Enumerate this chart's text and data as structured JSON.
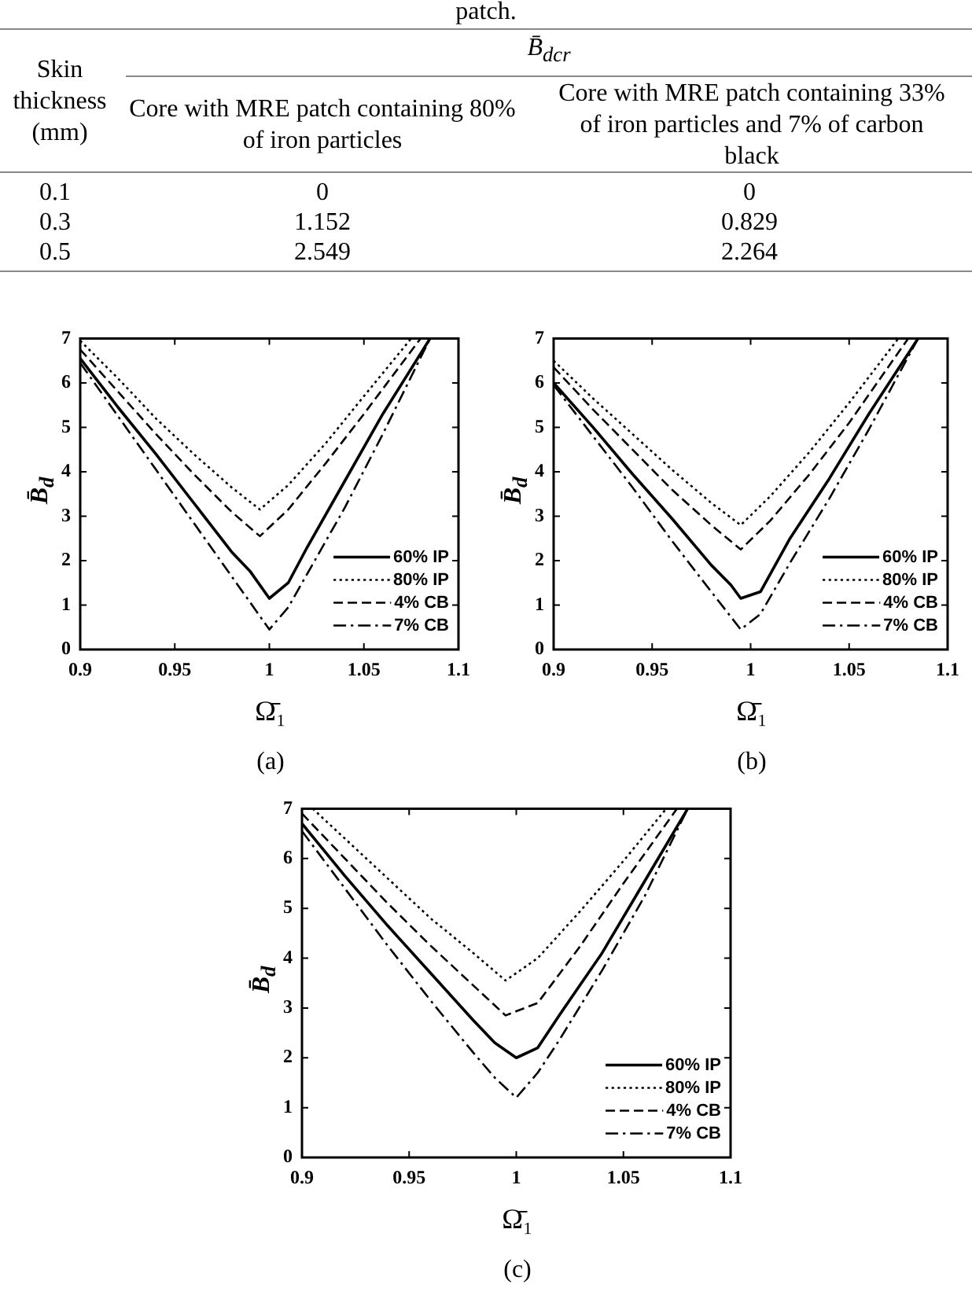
{
  "chart_data": [
    {
      "type": "other",
      "title": "patch.",
      "annotations": [
        "Skin thickness (mm)",
        "B̄$_{dcr}$",
        "Core with MRE patch containing 80% of iron particles",
        "Core with MRE patch containing 33% of iron particles and 7% of carbon black",
        "0.1",
        "0",
        "0",
        "0.3",
        "1.152",
        "0.829",
        "0.5",
        "2.549",
        "2.264"
      ]
    },
    {
      "type": "line",
      "title": "(a)",
      "xlabel": "Ω̄₁",
      "ylabel": "B̄$_{d}$",
      "xlim": [
        0.9,
        1.1
      ],
      "ylim": [
        0,
        7
      ],
      "xticks": [
        0.9,
        0.95,
        1,
        1.05,
        1.1
      ],
      "yticks": [
        0,
        1,
        2,
        3,
        4,
        5,
        6,
        7
      ],
      "legend": "bottom right",
      "series": [
        {
          "name": "60% IP",
          "color": "#000000",
          "line_style": "solid",
          "x": [
            0.9,
            0.92,
            0.94,
            0.96,
            0.98,
            0.99,
            1.0,
            1.01,
            1.02,
            1.04,
            1.06,
            1.085
          ],
          "values": [
            6.55,
            5.45,
            4.4,
            3.3,
            2.2,
            1.75,
            1.15,
            1.5,
            2.3,
            3.8,
            5.3,
            7
          ]
        },
        {
          "name": "80% IP",
          "color": "#000000",
          "line_style": "dotted",
          "x": [
            0.9,
            0.92,
            0.94,
            0.96,
            0.98,
            0.995,
            1.01,
            1.03,
            1.05,
            1.075
          ],
          "values": [
            6.95,
            6.1,
            5.2,
            4.4,
            3.65,
            3.15,
            3.7,
            4.65,
            5.7,
            7
          ]
        },
        {
          "name": "4% CB",
          "color": "#000000",
          "line_style": "dashed",
          "x": [
            0.9,
            0.92,
            0.94,
            0.96,
            0.98,
            0.995,
            1.01,
            1.03,
            1.05,
            1.08
          ],
          "values": [
            6.75,
            5.8,
            4.85,
            3.95,
            3.1,
            2.55,
            3.15,
            4.2,
            5.3,
            7
          ]
        },
        {
          "name": "7% CB",
          "color": "#000000",
          "line_style": "dashdot",
          "x": [
            0.9,
            0.92,
            0.94,
            0.96,
            0.98,
            0.99,
            1.0,
            1.01,
            1.02,
            1.04,
            1.06,
            1.085
          ],
          "values": [
            6.45,
            5.25,
            4.05,
            2.85,
            1.65,
            1.05,
            0.45,
            0.95,
            1.7,
            3.2,
            4.85,
            7
          ]
        }
      ]
    },
    {
      "type": "line",
      "title": "(b)",
      "xlabel": "Ω̄₁",
      "ylabel": "B̄$_{d}$",
      "xlim": [
        0.9,
        1.1
      ],
      "ylim": [
        0,
        7
      ],
      "xticks": [
        0.9,
        0.95,
        1,
        1.05,
        1.1
      ],
      "yticks": [
        0,
        1,
        2,
        3,
        4,
        5,
        6,
        7
      ],
      "legend": "bottom right",
      "series": [
        {
          "name": "60% IP",
          "color": "#000000",
          "line_style": "solid",
          "x": [
            0.9,
            0.92,
            0.94,
            0.96,
            0.98,
            0.99,
            0.995,
            1.005,
            1.02,
            1.04,
            1.06,
            1.085
          ],
          "values": [
            6,
            5,
            3.95,
            2.95,
            1.9,
            1.45,
            1.15,
            1.3,
            2.5,
            3.85,
            5.3,
            7
          ]
        },
        {
          "name": "80% IP",
          "color": "#000000",
          "line_style": "dotted",
          "x": [
            0.9,
            0.92,
            0.94,
            0.96,
            0.98,
            0.995,
            1.01,
            1.03,
            1.05,
            1.075
          ],
          "values": [
            6.5,
            5.65,
            4.85,
            4.05,
            3.3,
            2.8,
            3.45,
            4.45,
            5.55,
            7
          ]
        },
        {
          "name": "4% CB",
          "color": "#000000",
          "line_style": "dashed",
          "x": [
            0.9,
            0.92,
            0.94,
            0.96,
            0.98,
            0.995,
            1.01,
            1.03,
            1.05,
            1.08
          ],
          "values": [
            6.35,
            5.4,
            4.5,
            3.6,
            2.8,
            2.25,
            2.9,
            3.95,
            5.1,
            7
          ]
        },
        {
          "name": "7% CB",
          "color": "#000000",
          "line_style": "dashdot",
          "x": [
            0.9,
            0.92,
            0.94,
            0.96,
            0.98,
            0.995,
            1.005,
            1.02,
            1.04,
            1.06,
            1.085
          ],
          "values": [
            5.95,
            4.8,
            3.65,
            2.45,
            1.3,
            0.45,
            0.8,
            1.95,
            3.4,
            4.95,
            7
          ]
        }
      ]
    },
    {
      "type": "line",
      "title": "(c)",
      "xlabel": "Ω̄₁",
      "ylabel": "B̄$_{d}$",
      "xlim": [
        0.9,
        1.1
      ],
      "ylim": [
        0,
        7
      ],
      "xticks": [
        0.9,
        0.95,
        1,
        1.05,
        1.1
      ],
      "yticks": [
        0,
        1,
        2,
        3,
        4,
        5,
        6,
        7
      ],
      "legend": "bottom right",
      "series": [
        {
          "name": "60% IP",
          "color": "#000000",
          "line_style": "solid",
          "x": [
            0.9,
            0.92,
            0.94,
            0.96,
            0.98,
            0.99,
            1.0,
            1.01,
            1.02,
            1.04,
            1.06,
            1.08
          ],
          "values": [
            6.7,
            5.65,
            4.65,
            3.7,
            2.75,
            2.3,
            2.0,
            2.2,
            2.85,
            4.1,
            5.55,
            7
          ]
        },
        {
          "name": "80% IP",
          "color": "#000000",
          "line_style": "dotted",
          "x": [
            0.905,
            0.92,
            0.94,
            0.96,
            0.98,
            0.995,
            1.01,
            1.03,
            1.05,
            1.07
          ],
          "values": [
            7,
            6.4,
            5.6,
            4.8,
            4.1,
            3.55,
            4.0,
            4.95,
            5.95,
            7
          ]
        },
        {
          "name": "4% CB",
          "color": "#000000",
          "line_style": "dashed",
          "x": [
            0.9,
            0.92,
            0.94,
            0.96,
            0.98,
            0.995,
            1.01,
            1.03,
            1.05,
            1.075
          ],
          "values": [
            6.9,
            6.0,
            5.1,
            4.25,
            3.45,
            2.85,
            3.1,
            4.25,
            5.5,
            7
          ]
        },
        {
          "name": "7% CB",
          "color": "#000000",
          "line_style": "dashdot",
          "x": [
            0.9,
            0.92,
            0.94,
            0.96,
            0.98,
            0.99,
            1.0,
            1.01,
            1.02,
            1.04,
            1.06,
            1.08
          ],
          "values": [
            6.55,
            5.4,
            4.25,
            3.15,
            2.1,
            1.6,
            1.2,
            1.7,
            2.35,
            3.75,
            5.25,
            7
          ]
        }
      ]
    }
  ]
}
